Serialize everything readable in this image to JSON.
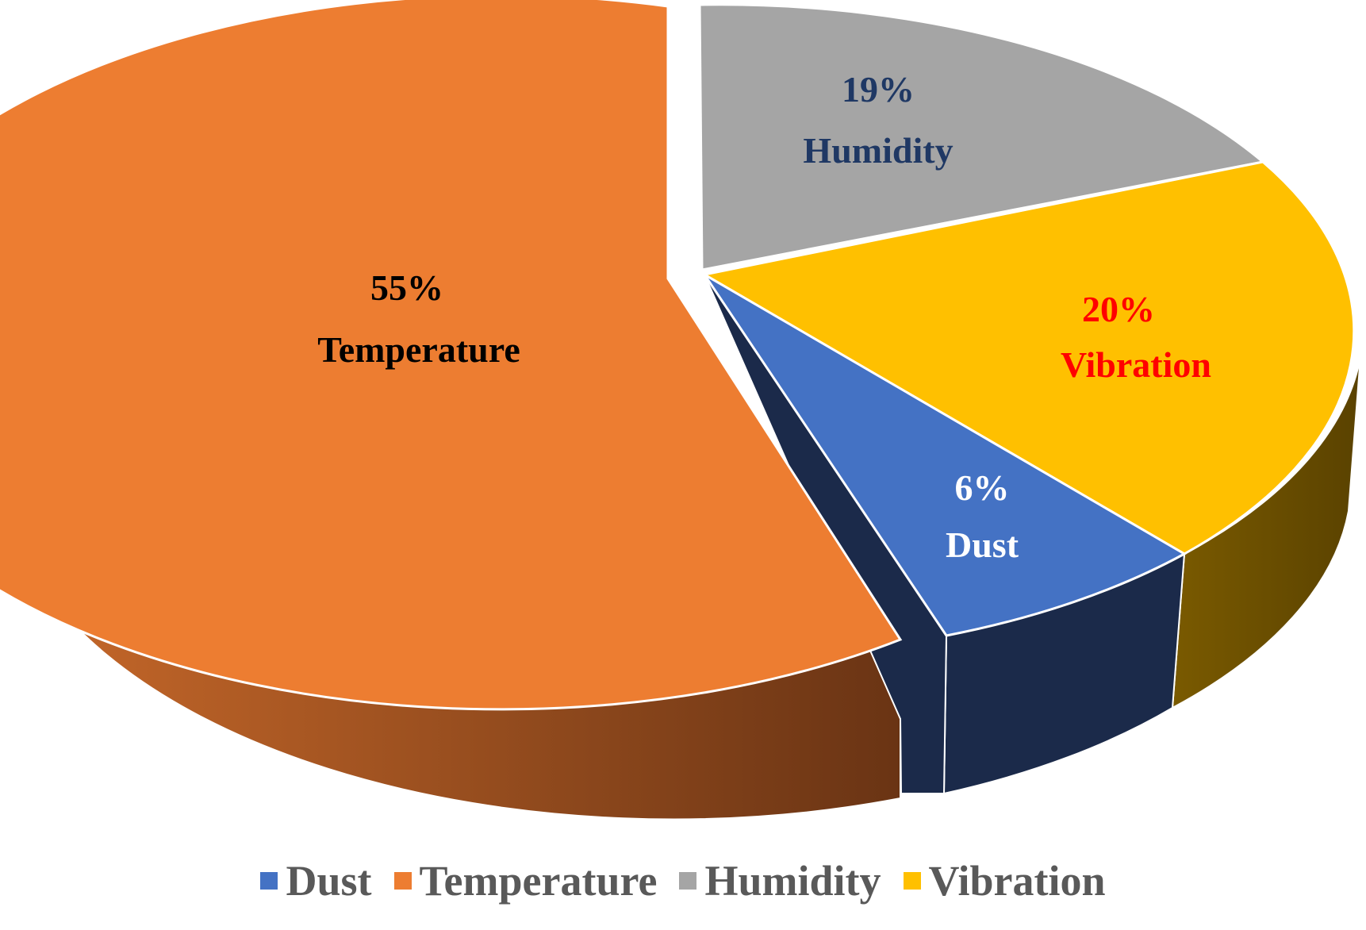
{
  "chart_data": {
    "type": "pie",
    "style": "3d-exploded",
    "title": "",
    "legend_position": "bottom",
    "slices": [
      {
        "name": "Dust",
        "value": 6,
        "label_pct": "6%",
        "label_name": "Dust",
        "color": "#4472C4",
        "label_color": "#FFFFFF"
      },
      {
        "name": "Temperature",
        "value": 55,
        "label_pct": "55%",
        "label_name": "Temperature",
        "color": "#ED7D31",
        "label_color": "#000000"
      },
      {
        "name": "Humidity",
        "value": 19,
        "label_pct": "19%",
        "label_name": "Humidity",
        "color": "#A5A5A5",
        "label_color": "#1F3864"
      },
      {
        "name": "Vibration",
        "value": 20,
        "label_pct": "20%",
        "label_name": "Vibration",
        "color": "#FFC000",
        "label_color": "#FF0000"
      }
    ]
  }
}
